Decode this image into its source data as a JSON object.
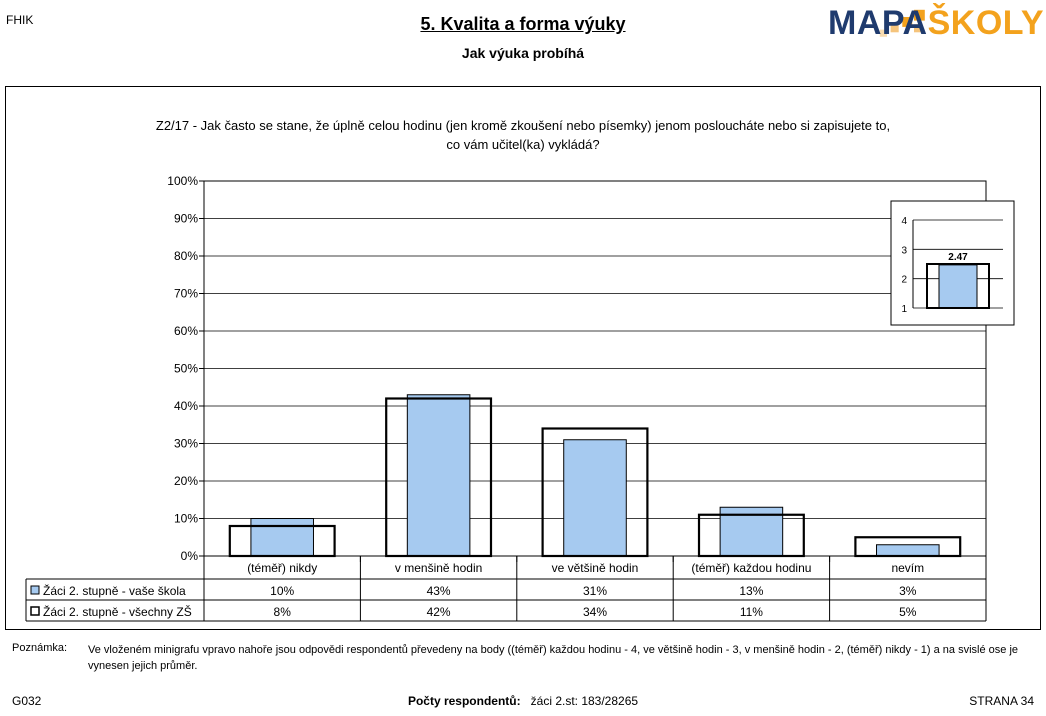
{
  "header": {
    "code": "FHIK",
    "title": "5. Kvalita a forma výuky",
    "subtitle": "Jak výuka probíhá",
    "logo": {
      "part1": "MAPA",
      "part2": "ŠKOLY",
      "color_primary": "#1f3b6e",
      "color_accent": "#f3a21d"
    }
  },
  "question": {
    "line1": "Z2/17 - Jak často se stane, že úplně celou hodinu (jen kromě zkoušení nebo písemky) jenom posloucháte nebo si zapisujete to,",
    "line2": "co vám učitel(ka) vykládá?"
  },
  "chart_data": [
    {
      "type": "bar",
      "categories": [
        "(téměř) nikdy",
        "v menšině hodin",
        "ve většině hodin",
        "(téměř) každou hodinu",
        "nevím"
      ],
      "series": [
        {
          "name": "Žáci 2. stupně - vaše škola",
          "values": [
            10,
            43,
            31,
            13,
            3
          ],
          "labels": [
            "10%",
            "43%",
            "31%",
            "13%",
            "3%"
          ],
          "color": "#a6caf0"
        },
        {
          "name": "Žáci 2. stupně - všechny ZŠ",
          "values": [
            8,
            42,
            34,
            11,
            5
          ],
          "labels": [
            "8%",
            "42%",
            "34%",
            "11%",
            "5%"
          ],
          "color": "#ffffff"
        }
      ],
      "yticks": [
        "0%",
        "10%",
        "20%",
        "30%",
        "40%",
        "50%",
        "60%",
        "70%",
        "80%",
        "90%",
        "100%"
      ],
      "ylim": [
        0,
        100
      ],
      "grid": true,
      "legend": "table-below"
    },
    {
      "type": "bar",
      "categories": [
        ""
      ],
      "series": [
        {
          "name": "vaše škola",
          "values": [
            2.47
          ],
          "color": "#a6caf0"
        },
        {
          "name": "všechny ZŠ",
          "values": [
            2.5
          ],
          "color": "#ffffff"
        }
      ],
      "data_label": "2.47",
      "yticks": [
        "1",
        "2",
        "3",
        "4"
      ],
      "ylim": [
        1,
        4
      ],
      "grid": true
    }
  ],
  "note": {
    "label": "Poznámka:",
    "text": "Ve vloženém minigrafu vpravo nahoře jsou odpovědi respondentů převedeny na body ((téměř) každou hodinu - 4, ve většině hodin - 3, v menšině hodin - 2, (téměř) nikdy - 1) a na svislé ose je vynesen jejich průměr."
  },
  "footer": {
    "left": "G032",
    "center_label": "Počty respondentů:",
    "center_value": "žáci 2.st: 183/28265",
    "right": "STRANA  34"
  }
}
